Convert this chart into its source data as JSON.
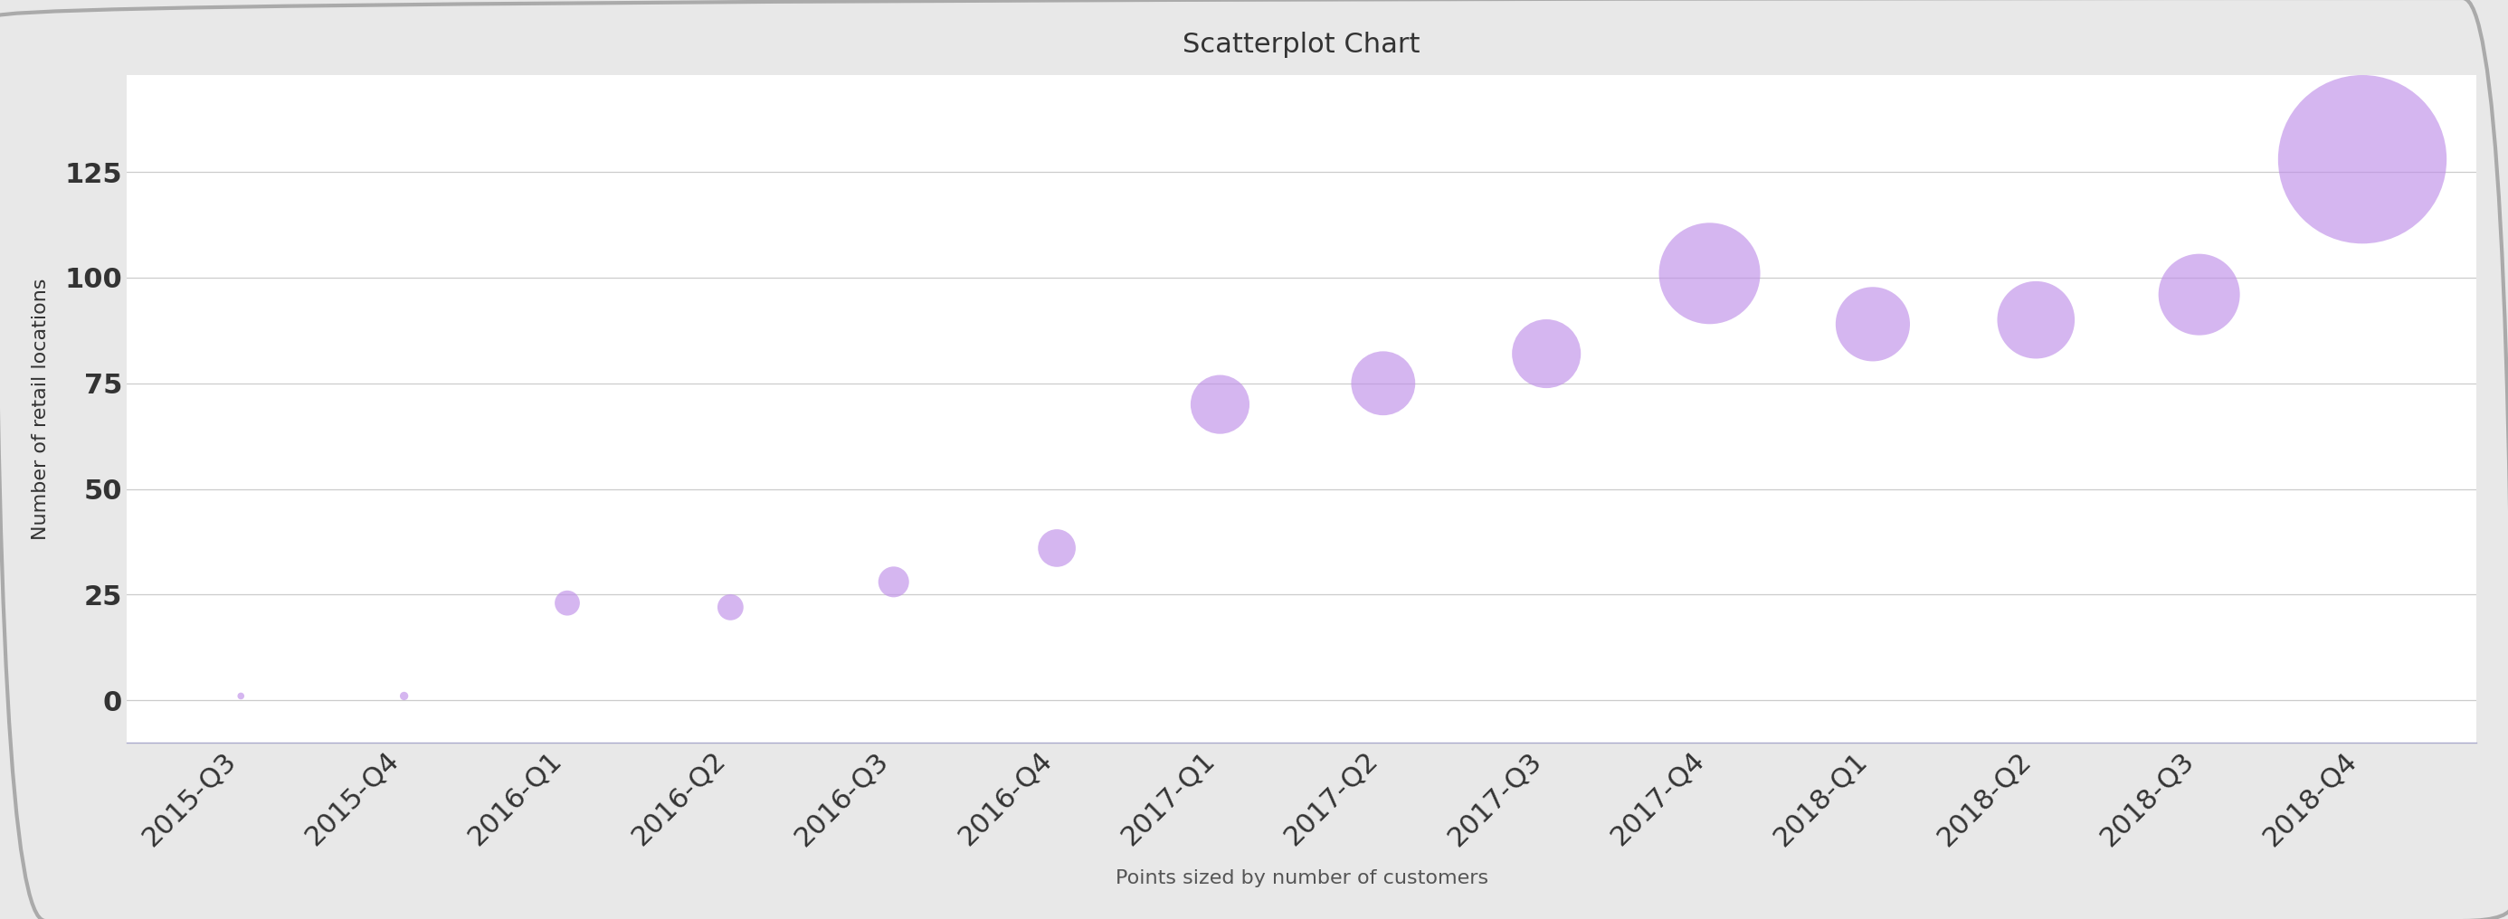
{
  "title": "Scatterplot Chart",
  "xlabel": "Points sized by number of customers",
  "ylabel": "Number of retail locations",
  "background_color": "#ffffff",
  "outer_bg_color": "#e8e8e8",
  "dot_color": "#bf8fe8",
  "dot_alpha": 0.65,
  "quarters": [
    "2015-Q3",
    "2015-Q4",
    "2016-Q1",
    "2016-Q2",
    "2016-Q3",
    "2016-Q4",
    "2017-Q1",
    "2017-Q2",
    "2017-Q3",
    "2017-Q4",
    "2018-Q1",
    "2018-Q2",
    "2018-Q3",
    "2018-Q4"
  ],
  "y_values": [
    1,
    1,
    23,
    22,
    28,
    36,
    70,
    75,
    82,
    101,
    89,
    90,
    96,
    128
  ],
  "sizes": [
    30,
    45,
    400,
    430,
    600,
    900,
    2200,
    2600,
    3000,
    6500,
    3500,
    3800,
    4200,
    18000
  ],
  "ylim": [
    -10,
    148
  ],
  "yticks": [
    0,
    25,
    50,
    75,
    100,
    125
  ],
  "title_fontsize": 22,
  "axis_label_fontsize": 16,
  "tick_fontsize": 22,
  "xlabel_fontsize": 16
}
